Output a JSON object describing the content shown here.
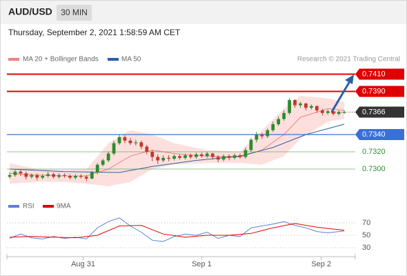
{
  "chart_data": {
    "type": "candlestick",
    "title": "AUD/USD",
    "timeframe": "30 MIN",
    "subtitle": "Thursday, September 2, 2021 1:58:59 AM CET",
    "source": "Research © 2021 Trading Central",
    "up_color": "#2e8b2e",
    "down_color": "#c0392b",
    "xlim": [
      -0.5,
      63
    ],
    "xticks": [
      {
        "value": 13.4,
        "label": "Aug 31"
      },
      {
        "value": 35,
        "label": "Sep 1"
      },
      {
        "value": 56.8,
        "label": "Sep 2"
      }
    ],
    "ylim": [
      0.7272,
      0.742
    ],
    "open": [
      0.7291,
      0.7293,
      0.7297,
      0.7295,
      0.7291,
      0.7293,
      0.729,
      0.7292,
      0.7294,
      0.7291,
      0.7293,
      0.7292,
      0.729,
      0.7292,
      0.7291,
      0.7289,
      0.7296,
      0.7305,
      0.731,
      0.7318,
      0.733,
      0.7337,
      0.7333,
      0.733,
      0.7331,
      0.7326,
      0.732,
      0.7314,
      0.731,
      0.7313,
      0.7312,
      0.7315,
      0.7313,
      0.7316,
      0.7314,
      0.7317,
      0.7315,
      0.7318,
      0.7314,
      0.7311,
      0.7315,
      0.7313,
      0.7316,
      0.7314,
      0.7322,
      0.7334,
      0.734,
      0.7338,
      0.7345,
      0.7352,
      0.7358,
      0.7365,
      0.738,
      0.7374,
      0.7376,
      0.7371,
      0.7373,
      0.7368,
      0.7365,
      0.7367,
      0.7364,
      0.7366
    ],
    "high": [
      0.7296,
      0.7299,
      0.7299,
      0.7297,
      0.7295,
      0.7295,
      0.7294,
      0.7297,
      0.7296,
      0.7295,
      0.7295,
      0.7294,
      0.7294,
      0.7294,
      0.7293,
      0.7298,
      0.7307,
      0.7312,
      0.732,
      0.7333,
      0.734,
      0.7339,
      0.7336,
      0.7334,
      0.7333,
      0.7328,
      0.7322,
      0.7317,
      0.7316,
      0.7316,
      0.7317,
      0.7317,
      0.7318,
      0.7318,
      0.7319,
      0.7319,
      0.732,
      0.7319,
      0.7316,
      0.7317,
      0.7317,
      0.7318,
      0.7318,
      0.7325,
      0.7336,
      0.7343,
      0.7342,
      0.7347,
      0.7355,
      0.7361,
      0.7368,
      0.7382,
      0.7381,
      0.7378,
      0.7377,
      0.7375,
      0.7374,
      0.737,
      0.7369,
      0.7368,
      0.7368,
      0.7368
    ],
    "low": [
      0.7289,
      0.7291,
      0.7292,
      0.7288,
      0.7289,
      0.7287,
      0.7288,
      0.729,
      0.7289,
      0.7289,
      0.729,
      0.7288,
      0.7288,
      0.7289,
      0.7286,
      0.7288,
      0.7294,
      0.7303,
      0.7308,
      0.7316,
      0.7328,
      0.733,
      0.7328,
      0.7327,
      0.7323,
      0.7317,
      0.7309,
      0.7306,
      0.7308,
      0.7309,
      0.731,
      0.7311,
      0.7311,
      0.7312,
      0.7312,
      0.7313,
      0.7313,
      0.7311,
      0.7308,
      0.7309,
      0.731,
      0.7311,
      0.7312,
      0.7312,
      0.732,
      0.7331,
      0.7335,
      0.7336,
      0.7343,
      0.735,
      0.7356,
      0.7363,
      0.7371,
      0.7371,
      0.7368,
      0.7369,
      0.7365,
      0.7362,
      0.7363,
      0.7362,
      0.7362,
      0.7364
    ],
    "close": [
      0.7293,
      0.7297,
      0.7295,
      0.7291,
      0.7293,
      0.729,
      0.7292,
      0.7294,
      0.7291,
      0.7293,
      0.7292,
      0.729,
      0.7292,
      0.7291,
      0.7289,
      0.7296,
      0.7305,
      0.731,
      0.7318,
      0.733,
      0.7337,
      0.7333,
      0.733,
      0.7331,
      0.7326,
      0.732,
      0.7314,
      0.731,
      0.7313,
      0.7312,
      0.7315,
      0.7313,
      0.7316,
      0.7314,
      0.7317,
      0.7315,
      0.7318,
      0.7314,
      0.7311,
      0.7315,
      0.7313,
      0.7316,
      0.7314,
      0.7322,
      0.7334,
      0.734,
      0.7338,
      0.7345,
      0.7352,
      0.7358,
      0.7365,
      0.738,
      0.7374,
      0.7376,
      0.7371,
      0.7373,
      0.7368,
      0.7365,
      0.7367,
      0.7364,
      0.7366,
      0.7366
    ],
    "bollinger": {
      "name": "MA 20 + Bollinger Bands",
      "color": "#f08080",
      "band_color": "#fde0de",
      "x": [
        0,
        5,
        10,
        14,
        18,
        22,
        26,
        30,
        36,
        42,
        46,
        50,
        53,
        58,
        61
      ],
      "upper": [
        0.7307,
        0.73,
        0.7299,
        0.73,
        0.733,
        0.7345,
        0.734,
        0.733,
        0.7322,
        0.732,
        0.7345,
        0.737,
        0.7385,
        0.7382,
        0.7378
      ],
      "mid": [
        0.7295,
        0.7293,
        0.7292,
        0.7292,
        0.73,
        0.7315,
        0.7322,
        0.7318,
        0.7315,
        0.7314,
        0.7322,
        0.734,
        0.736,
        0.737,
        0.7368
      ],
      "lower": [
        0.7283,
        0.7285,
        0.7285,
        0.7283,
        0.728,
        0.7285,
        0.73,
        0.7305,
        0.7307,
        0.7307,
        0.7305,
        0.7315,
        0.7335,
        0.7355,
        0.7358
      ]
    },
    "ma50": {
      "name": "MA 50",
      "color": "#2a5ea8",
      "x": [
        0,
        10,
        20,
        26,
        34,
        42,
        48,
        54,
        61
      ],
      "values": [
        0.73,
        0.7297,
        0.7296,
        0.7303,
        0.731,
        0.7315,
        0.7325,
        0.734,
        0.7352
      ]
    },
    "levels": [
      {
        "value": 0.741,
        "label": "0.7410",
        "color": "#e00000",
        "kind": "resistance"
      },
      {
        "value": 0.739,
        "label": "0.7390",
        "color": "#e00000",
        "kind": "resistance"
      },
      {
        "value": 0.7366,
        "label": "0.7366",
        "color": "#333333",
        "kind": "current"
      },
      {
        "value": 0.734,
        "label": "0.7340",
        "color": "#3b6fd8",
        "kind": "pivot"
      },
      {
        "value": 0.732,
        "label": "0.7320",
        "color": "#2e8b2e",
        "kind": "support"
      },
      {
        "value": 0.73,
        "label": "0.7300",
        "color": "#2e8b2e",
        "kind": "support"
      }
    ],
    "indicator": {
      "ylim": [
        20,
        100
      ],
      "yticks": [
        30,
        50,
        70
      ],
      "series": [
        {
          "name": "RSI",
          "color": "#5b7fd6",
          "x": [
            0,
            2,
            4,
            6,
            8,
            10,
            12,
            14,
            16,
            18,
            20,
            22,
            24,
            26,
            28,
            30,
            32,
            34,
            36,
            38,
            40,
            42,
            44,
            46,
            48,
            50,
            52,
            54,
            56,
            58,
            60,
            61
          ],
          "values": [
            45,
            52,
            46,
            44,
            48,
            45,
            47,
            44,
            62,
            72,
            78,
            65,
            55,
            42,
            40,
            48,
            52,
            50,
            55,
            45,
            50,
            48,
            62,
            65,
            68,
            72,
            66,
            62,
            56,
            54,
            56,
            57
          ]
        },
        {
          "name": "9MA",
          "color": "#e00000",
          "x": [
            0,
            4,
            8,
            12,
            16,
            20,
            24,
            28,
            32,
            36,
            40,
            44,
            48,
            52,
            56,
            61
          ],
          "values": [
            47,
            48,
            47,
            46,
            50,
            65,
            66,
            52,
            47,
            50,
            50,
            53,
            62,
            69,
            63,
            58
          ]
        }
      ]
    }
  }
}
